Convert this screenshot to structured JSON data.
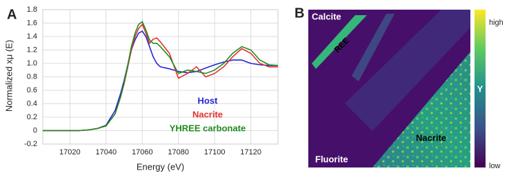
{
  "chart_data": [
    {
      "type": "line",
      "panel_label": "A",
      "x_label": "Energy (eV)",
      "y_label": "Normalized xμ (E)",
      "x": [
        17005,
        17010,
        17015,
        17020,
        17025,
        17030,
        17035,
        17040,
        17045,
        17048,
        17050,
        17052,
        17054,
        17056,
        17058,
        17060,
        17062,
        17064,
        17066,
        17068,
        17070,
        17075,
        17080,
        17085,
        17090,
        17095,
        17100,
        17105,
        17110,
        17115,
        17120,
        17125,
        17130,
        17135
      ],
      "series": [
        {
          "name": "Host",
          "color": "#2424d8",
          "values": [
            0,
            0,
            0,
            0,
            0,
            0.01,
            0.03,
            0.08,
            0.3,
            0.55,
            0.75,
            0.98,
            1.2,
            1.35,
            1.45,
            1.48,
            1.4,
            1.25,
            1.1,
            1.0,
            0.95,
            0.92,
            0.88,
            0.86,
            0.88,
            0.93,
            0.98,
            1.02,
            1.05,
            1.05,
            1.0,
            0.98,
            0.97,
            0.97
          ]
        },
        {
          "name": "Nacrite",
          "color": "#e2302a",
          "values": [
            0,
            0,
            0,
            0,
            0,
            0.01,
            0.03,
            0.07,
            0.25,
            0.5,
            0.7,
            0.95,
            1.2,
            1.4,
            1.52,
            1.58,
            1.45,
            1.3,
            1.36,
            1.38,
            1.32,
            1.15,
            0.78,
            0.85,
            0.95,
            0.8,
            0.85,
            0.95,
            1.1,
            1.22,
            1.15,
            1.0,
            0.95,
            0.95
          ]
        },
        {
          "name": "YHREE carbonate",
          "color": "#1f8c1f",
          "values": [
            0,
            0,
            0,
            0,
            0,
            0.01,
            0.03,
            0.07,
            0.25,
            0.5,
            0.72,
            0.98,
            1.25,
            1.45,
            1.58,
            1.62,
            1.5,
            1.35,
            1.3,
            1.3,
            1.25,
            1.1,
            0.85,
            0.9,
            0.88,
            0.85,
            0.9,
            1.0,
            1.15,
            1.25,
            1.2,
            1.05,
            0.98,
            0.97
          ]
        }
      ],
      "xlim": [
        17005,
        17135
      ],
      "xticks": [
        17020,
        17040,
        17060,
        17080,
        17100,
        17120
      ],
      "ylim": [
        -0.2,
        1.8
      ],
      "yticks": [
        -0.2,
        0,
        0.2,
        0.4,
        0.6,
        0.8,
        {
          "value": 1,
          "label": "1.0"
        },
        1.2,
        1.4,
        1.6,
        1.8
      ],
      "grid": true
    }
  ],
  "panel_b": {
    "panel_label": "B",
    "regions": [
      "Calcite",
      "REE",
      "Nacrite",
      "Fluorite"
    ],
    "colorbar": {
      "title": "Y",
      "high": "high",
      "low": "low"
    }
  }
}
